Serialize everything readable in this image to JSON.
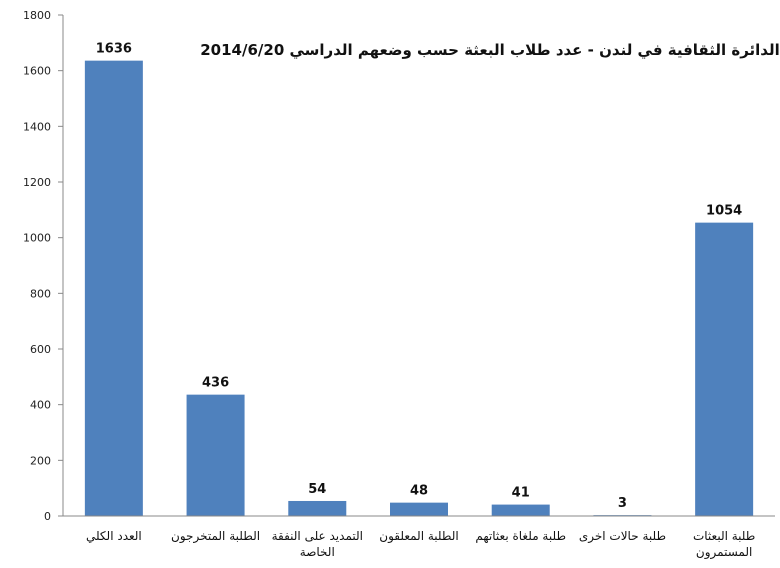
{
  "chart_data": {
    "type": "bar",
    "title": "الدائرة الثقافية في لندن - عدد طلاب البعثة حسب وضعهم الدراسي 2014/6/20",
    "categories": [
      [
        "العدد الكلي"
      ],
      [
        "الطلبة المتخرجون"
      ],
      [
        "التمديد على النفقة",
        "الخاصة"
      ],
      [
        "الطلبة المعلقون"
      ],
      [
        "طلبة ملغاة بعثاتهم"
      ],
      [
        "طلبة حالات اخرى"
      ],
      [
        "طلبة البعثات",
        "المستمرون"
      ]
    ],
    "values": [
      1636,
      436,
      54,
      48,
      41,
      3,
      1054
    ],
    "ylim": [
      0,
      1800
    ],
    "yticks": [
      0,
      200,
      400,
      600,
      800,
      1000,
      1200,
      1400,
      1600,
      1800
    ],
    "grid": false,
    "bar_color": "#4f81bd"
  }
}
